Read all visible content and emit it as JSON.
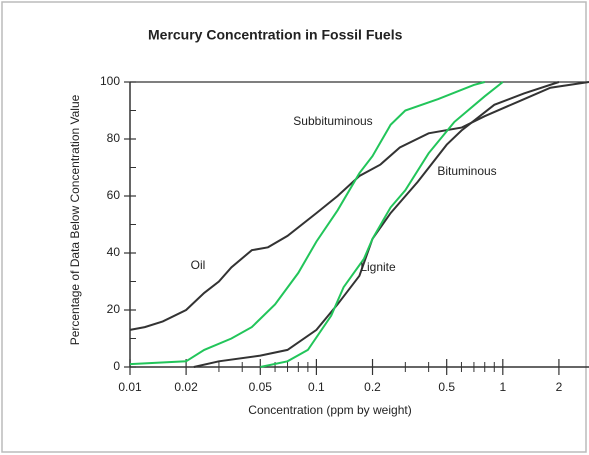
{
  "chart_data": {
    "type": "line",
    "title": "Mercury Concentration in Fossil Fuels",
    "x_label": "Concentration (ppm by weight)",
    "y_label": "Percentage of Data Below Concentration Value",
    "xscale": "log",
    "xlim": [
      0.01,
      2.9
    ],
    "ylim": [
      0,
      100
    ],
    "xticks": [
      0.01,
      0.02,
      0.05,
      0.1,
      0.2,
      0.5,
      1,
      2
    ],
    "xminorticks": [
      0.03,
      0.04,
      0.06,
      0.07,
      0.08,
      0.09,
      0.3,
      0.4,
      0.6,
      0.7,
      0.8,
      0.9
    ],
    "yticks": [
      0,
      20,
      40,
      60,
      80,
      100
    ],
    "yminorticks": [
      10,
      30,
      50,
      70,
      90
    ],
    "series": [
      {
        "name": "Oil",
        "color": "#333333",
        "x": [
          0.01,
          0.012,
          0.015,
          0.02,
          0.025,
          0.03,
          0.035,
          0.045,
          0.055,
          0.07,
          0.1,
          0.13,
          0.17,
          0.22,
          0.28,
          0.4,
          0.6,
          0.8,
          1.2,
          1.8,
          2.9
        ],
        "values": [
          13,
          14,
          16,
          20,
          26,
          30,
          35,
          41,
          42,
          46,
          54,
          60,
          67,
          71,
          77,
          82,
          84,
          88,
          93,
          98,
          100
        ]
      },
      {
        "name": "Subbituminous",
        "color": "#22c55a",
        "x": [
          0.01,
          0.02,
          0.025,
          0.035,
          0.045,
          0.06,
          0.08,
          0.1,
          0.13,
          0.17,
          0.2,
          0.25,
          0.3,
          0.45,
          0.7,
          0.8
        ],
        "values": [
          1,
          2,
          6,
          10,
          14,
          22,
          33,
          44,
          55,
          68,
          74,
          85,
          90,
          94,
          99,
          100
        ]
      },
      {
        "name": "Bituminous",
        "color": "#333333",
        "x": [
          0.022,
          0.03,
          0.05,
          0.07,
          0.1,
          0.13,
          0.17,
          0.2,
          0.25,
          0.35,
          0.5,
          0.6,
          0.9,
          1.3,
          2
        ],
        "values": [
          0,
          2,
          4,
          6,
          13,
          22,
          32,
          45,
          54,
          65,
          78,
          83,
          92,
          96,
          100
        ]
      },
      {
        "name": "Lignite",
        "color": "#22c55a",
        "x": [
          0.05,
          0.07,
          0.09,
          0.12,
          0.14,
          0.18,
          0.2,
          0.25,
          0.3,
          0.4,
          0.55,
          0.8,
          1
        ],
        "values": [
          0,
          2,
          6,
          18,
          28,
          38,
          45,
          56,
          62,
          75,
          86,
          95,
          100
        ]
      }
    ]
  }
}
